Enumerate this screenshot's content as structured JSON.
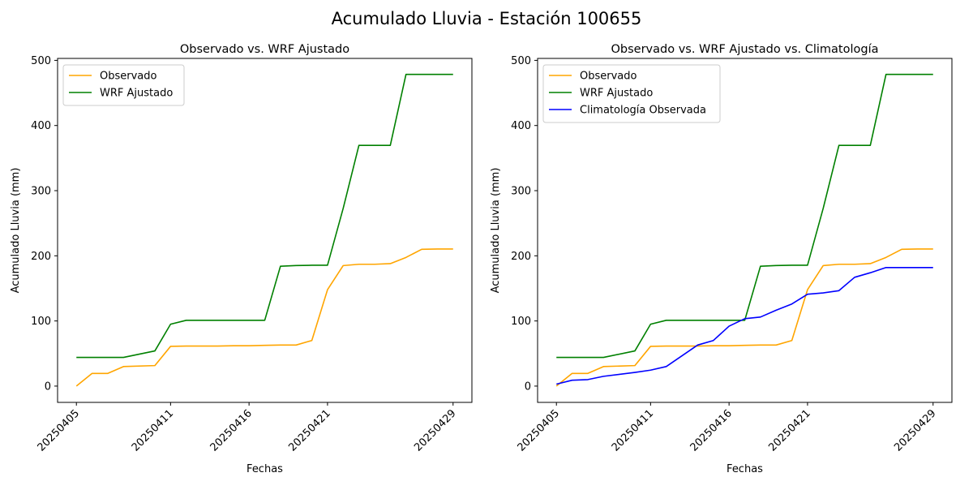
{
  "figure": {
    "suptitle": "Acumulado Lluvia - Estación 100655"
  },
  "colors": {
    "observado": "#ffa500",
    "wrf": "#008000",
    "clima": "#0000ff"
  },
  "chart_data": [
    {
      "type": "line",
      "title": "Observado vs. WRF Ajustado",
      "xlabel": "Fechas",
      "ylabel": "Acumulado Lluvia (mm)",
      "x_type": "date",
      "x": [
        "2025-04-05",
        "2025-04-06",
        "2025-04-07",
        "2025-04-08",
        "2025-04-10",
        "2025-04-11",
        "2025-04-12",
        "2025-04-13",
        "2025-04-14",
        "2025-04-15",
        "2025-04-16",
        "2025-04-17",
        "2025-04-18",
        "2025-04-19",
        "2025-04-20",
        "2025-04-21",
        "2025-04-22",
        "2025-04-23",
        "2025-04-24",
        "2025-04-25",
        "2025-04-26",
        "2025-04-27",
        "2025-04-28",
        "2025-04-29"
      ],
      "xticks": [
        "20250405",
        "20250411",
        "20250416",
        "20250421",
        "20250429"
      ],
      "ylim": [
        -25,
        503
      ],
      "yticks": [
        0,
        100,
        200,
        300,
        400,
        500
      ],
      "legend_position": "upper-left",
      "series": [
        {
          "name": "Observado",
          "color_key": "observado",
          "values": [
            0,
            19.5,
            19.5,
            30,
            31.5,
            61,
            61.5,
            61.5,
            61.5,
            62,
            62,
            62.5,
            63,
            63,
            70,
            148,
            185,
            187,
            187,
            188,
            197.5,
            210,
            210.5,
            210.5
          ]
        },
        {
          "name": "WRF Ajustado",
          "color_key": "wrf",
          "values": [
            44,
            44,
            44,
            44,
            54,
            95,
            101,
            101,
            101,
            101,
            101,
            101,
            184,
            185,
            185.5,
            185.5,
            273,
            369.5,
            369.5,
            369.5,
            478.5,
            478.5,
            478.5,
            478.5
          ]
        }
      ]
    },
    {
      "type": "line",
      "title": "Observado vs. WRF Ajustado vs. Climatología",
      "xlabel": "Fechas",
      "ylabel": "Acumulado Lluvia (mm)",
      "x_type": "date",
      "x": [
        "2025-04-05",
        "2025-04-06",
        "2025-04-07",
        "2025-04-08",
        "2025-04-10",
        "2025-04-11",
        "2025-04-12",
        "2025-04-13",
        "2025-04-14",
        "2025-04-15",
        "2025-04-16",
        "2025-04-17",
        "2025-04-18",
        "2025-04-19",
        "2025-04-20",
        "2025-04-21",
        "2025-04-22",
        "2025-04-23",
        "2025-04-24",
        "2025-04-25",
        "2025-04-26",
        "2025-04-27",
        "2025-04-28",
        "2025-04-29"
      ],
      "xticks": [
        "20250405",
        "20250411",
        "20250416",
        "20250421",
        "20250429"
      ],
      "ylim": [
        -25,
        503
      ],
      "yticks": [
        0,
        100,
        200,
        300,
        400,
        500
      ],
      "legend_position": "upper-left",
      "series": [
        {
          "name": "Observado",
          "color_key": "observado",
          "values": [
            0,
            19.5,
            19.5,
            30,
            31.5,
            61,
            61.5,
            61.5,
            61.5,
            62,
            62,
            62.5,
            63,
            63,
            70,
            148,
            185,
            187,
            187,
            188,
            197.5,
            210,
            210.5,
            210.5
          ]
        },
        {
          "name": "WRF Ajustado",
          "color_key": "wrf",
          "values": [
            44,
            44,
            44,
            44,
            54,
            95,
            101,
            101,
            101,
            101,
            101,
            101,
            184,
            185,
            185.5,
            185.5,
            273,
            369.5,
            369.5,
            369.5,
            478.5,
            478.5,
            478.5,
            478.5
          ]
        },
        {
          "name": "Climatología Observada",
          "color_key": "clima",
          "values": [
            3,
            9,
            10,
            15,
            21,
            24.5,
            30,
            46.5,
            63,
            70,
            92,
            103.5,
            106,
            116.5,
            126,
            141,
            143,
            146.5,
            167,
            174,
            182,
            182,
            182,
            182
          ]
        }
      ]
    }
  ]
}
